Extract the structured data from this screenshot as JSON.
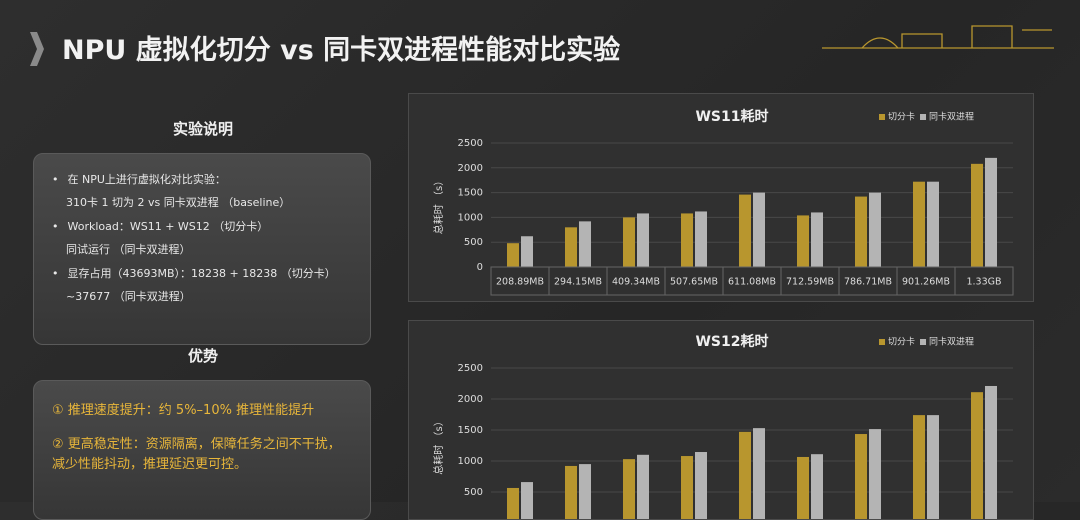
{
  "header": {
    "title": "NPU 虚拟化切分 vs 同卡双进程性能对比实验"
  },
  "sections": [
    {
      "title": "实验说明",
      "items": [
        [
          "在 NPU上进行虚拟化对比实验：",
          "310卡 1 切为 2 vs 同卡双进程 （baseline）"
        ],
        [
          "Workload：WS11 + WS12 （切分卡）",
          "同试运行 （同卡双进程）"
        ],
        [
          "显存占用（43693MB）：18238 + 18238 （切分卡）",
          "~37677 （同卡双进程）"
        ]
      ]
    },
    {
      "title": "优势",
      "items": [
        [
          "① 推理速度提升：约 5%–10% 推理性能提升"
        ],
        [
          "② 更高稳定性：资源隔离，保障任务之间不干扰，",
          "减少性能抖动，推理延迟更可控。"
        ]
      ]
    }
  ],
  "chart_data": [
    {
      "type": "bar",
      "title": "WS11耗时",
      "y_label": "总耗时 （s）",
      "categories": [
        "208.89MB",
        "294.15MB",
        "409.34MB",
        "507.65MB",
        "611.08MB",
        "712.59MB",
        "786.71MB",
        "901.26MB",
        "1.33GB"
      ],
      "series": [
        {
          "name": "切分卡",
          "color": "#b8962e",
          "values": [
            480,
            800,
            1000,
            1080,
            1460,
            1040,
            1420,
            1720,
            2080
          ]
        },
        {
          "name": "同卡双进程",
          "color": "#b4b4b4",
          "values": [
            620,
            920,
            1080,
            1120,
            1500,
            1100,
            1500,
            1720,
            2200
          ]
        }
      ],
      "ylim": [
        0,
        2500
      ],
      "yticks": [
        0,
        500,
        1000,
        1500,
        2000,
        2500
      ]
    },
    {
      "type": "bar",
      "title": "WS12耗时",
      "y_label": "总耗时 （s）",
      "series": [
        {
          "name": "切分卡",
          "color": "#b8962e",
          "values": [
            565,
            920,
            1030,
            1080,
            1470,
            1065,
            1435,
            1740,
            2110
          ]
        },
        {
          "name": "同卡双进程",
          "color": "#b4b4b4",
          "values": [
            660,
            950,
            1100,
            1145,
            1530,
            1110,
            1515,
            1740,
            2210
          ]
        }
      ],
      "ylim": [
        0,
        2500
      ],
      "yticks": [
        500,
        1000,
        1500,
        2000,
        2500
      ]
    }
  ]
}
